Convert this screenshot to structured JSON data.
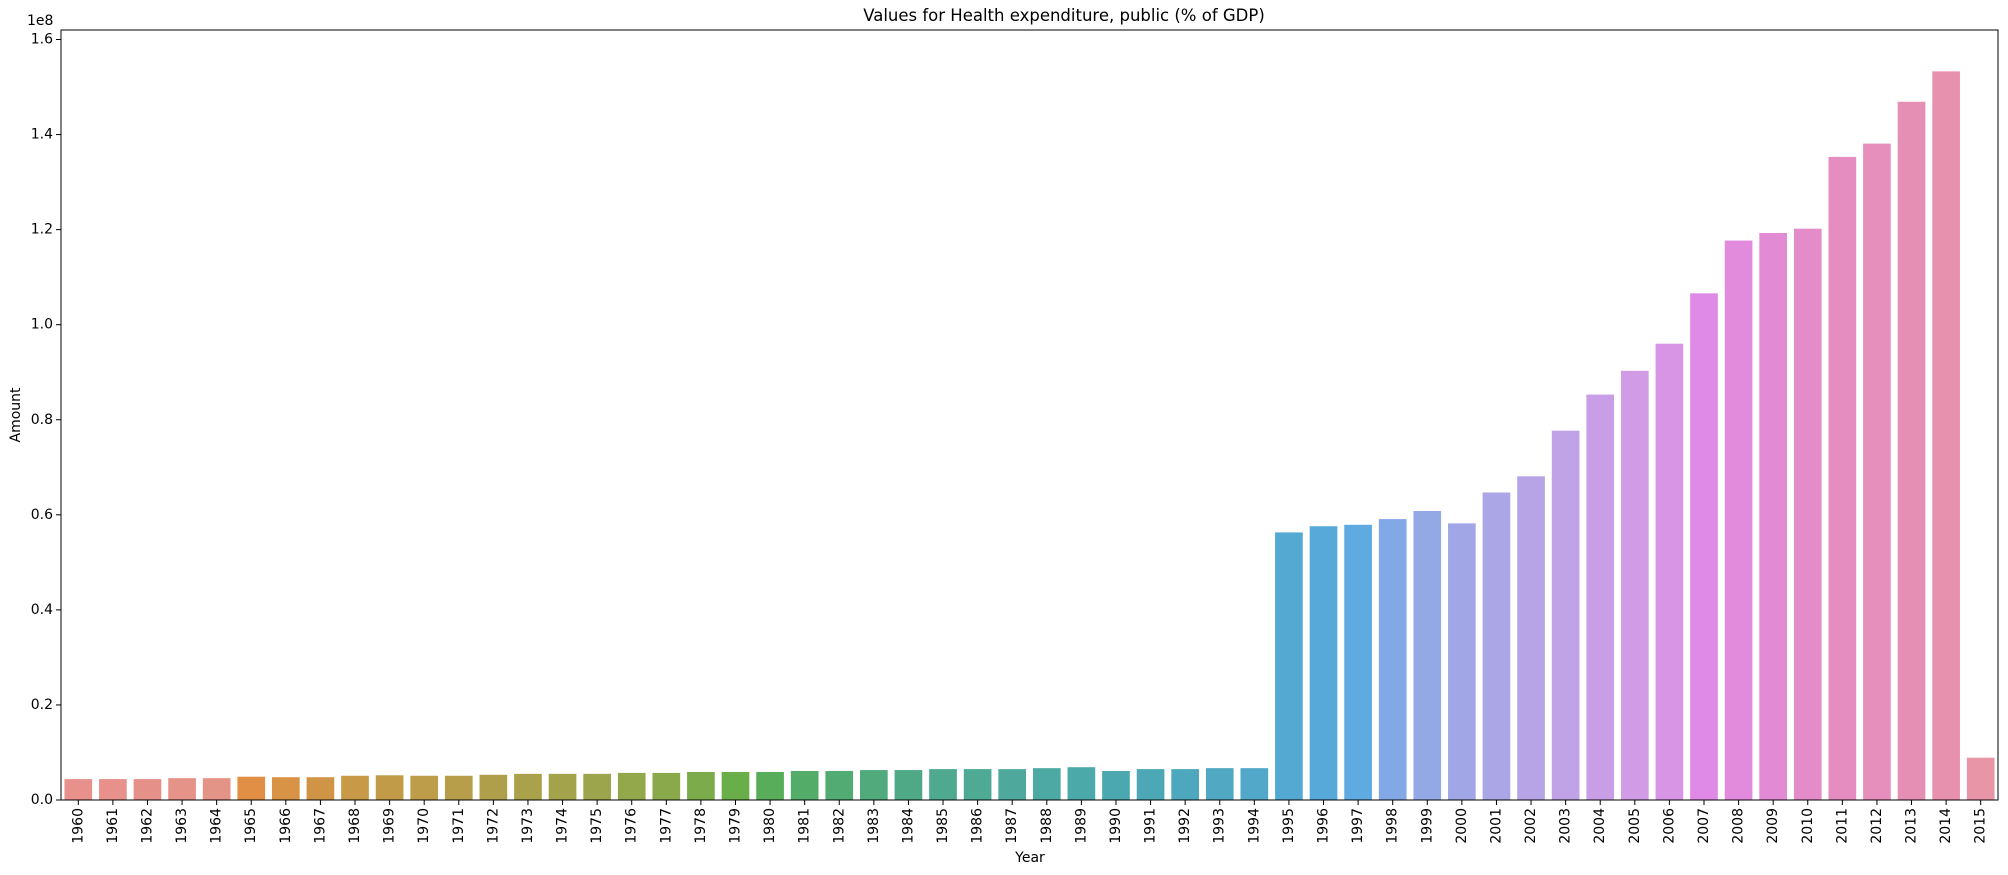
{
  "chart_data": {
    "type": "bar",
    "title": "Values for Health expenditure, public (% of GDP)",
    "xlabel": "Year",
    "ylabel": "Amount",
    "y_scale_note": "1e8",
    "ylim": [
      0,
      162000000.0
    ],
    "y_ticks": [
      0,
      20000000.0,
      40000000.0,
      60000000.0,
      80000000.0,
      100000000.0,
      120000000.0,
      140000000.0,
      160000000.0
    ],
    "y_tick_labels": [
      "0.0",
      "0.2",
      "0.4",
      "0.6",
      "0.8",
      "1.0",
      "1.2",
      "1.4",
      "1.6"
    ],
    "grid": false,
    "legend": "none",
    "categories": [
      "1960",
      "1961",
      "1962",
      "1963",
      "1964",
      "1965",
      "1966",
      "1967",
      "1968",
      "1969",
      "1970",
      "1971",
      "1972",
      "1973",
      "1974",
      "1975",
      "1976",
      "1977",
      "1978",
      "1979",
      "1980",
      "1981",
      "1982",
      "1983",
      "1984",
      "1985",
      "1986",
      "1987",
      "1988",
      "1989",
      "1990",
      "1991",
      "1992",
      "1993",
      "1994",
      "1995",
      "1996",
      "1997",
      "1998",
      "1999",
      "2000",
      "2001",
      "2002",
      "2003",
      "2004",
      "2005",
      "2006",
      "2007",
      "2008",
      "2009",
      "2010",
      "2011",
      "2012",
      "2013",
      "2014",
      "2015"
    ],
    "values": [
      4400000,
      4400000,
      4400000,
      4600000,
      4600000,
      4900000,
      4800000,
      4800000,
      5100000,
      5200000,
      5100000,
      5100000,
      5300000,
      5500000,
      5500000,
      5500000,
      5700000,
      5700000,
      5900000,
      5900000,
      5900000,
      6100000,
      6100000,
      6300000,
      6300000,
      6500000,
      6500000,
      6500000,
      6700000,
      6900000,
      6100000,
      6500000,
      6500000,
      6700000,
      6700000,
      56300000,
      57600000,
      57900000,
      59100000,
      60800000,
      58200000,
      64700000,
      68100000,
      77700000,
      85300000,
      90300000,
      96000000,
      106600000,
      117700000,
      119300000,
      120200000,
      135300000,
      138100000,
      146900000,
      153300000,
      8900000
    ],
    "colors": [
      "#e8908c",
      "#e8908c",
      "#e5918a",
      "#e59388",
      "#e49486",
      "#e08f44",
      "#d99347",
      "#d09447",
      "#c89a48",
      "#c29b49",
      "#bd9c4a",
      "#b79e4a",
      "#b09f4a",
      "#a9a24b",
      "#a3a34b",
      "#9ca54b",
      "#93a74b",
      "#89a94b",
      "#7bab4b",
      "#6aae4a",
      "#58ad5a",
      "#53ac67",
      "#52ab72",
      "#50aa7c",
      "#4fa986",
      "#4ea98e",
      "#4ea995",
      "#4ea99c",
      "#4da9a3",
      "#4ca9aa",
      "#4ca8b0",
      "#4ca8b6",
      "#4ea8bd",
      "#50a8c3",
      "#52a8c8",
      "#53a9d1",
      "#56a9d9",
      "#5eaae1",
      "#83a8e6",
      "#93a9e6",
      "#a1a7e6",
      "#aba6e6",
      "#b6a4e6",
      "#c0a2e6",
      "#c89fe6",
      "#d19be6",
      "#d895e6",
      "#df8ae6",
      "#e28adc",
      "#e28bd4",
      "#e48cc9",
      "#e58dc1",
      "#e68fbc",
      "#e68fb5",
      "#e791ae",
      "#e895a8"
    ]
  }
}
